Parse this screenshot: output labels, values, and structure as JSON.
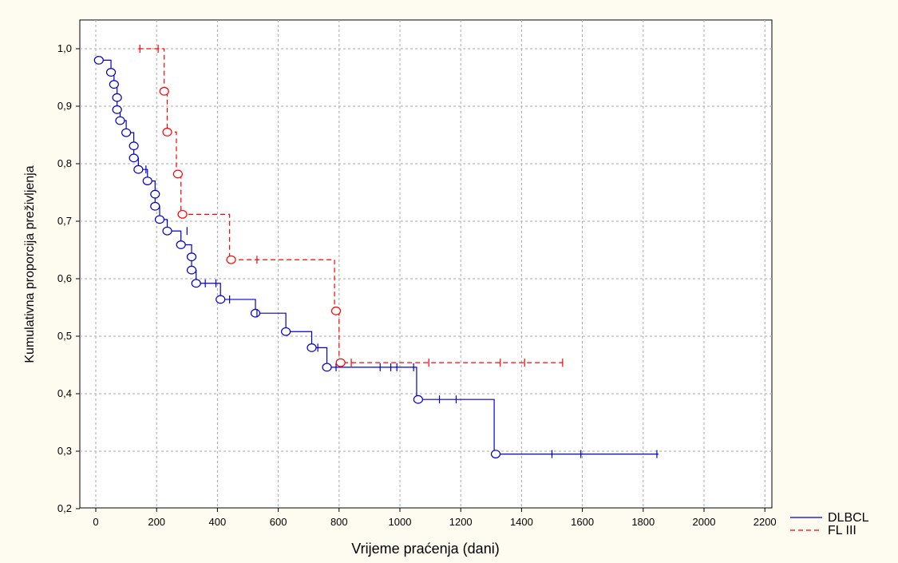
{
  "chart_data": {
    "type": "line",
    "title": "",
    "xlabel": "Vrijeme praćenja (dani)",
    "ylabel": "Kumulativna proporcija preživljenja",
    "xlim": [
      -50,
      2200
    ],
    "ylim": [
      0.2,
      1.05
    ],
    "xticks": [
      0,
      200,
      400,
      600,
      800,
      1000,
      1200,
      1400,
      1600,
      1800,
      2000,
      2200
    ],
    "yticks": [
      0.2,
      0.3,
      0.4,
      0.5,
      0.6,
      0.7,
      0.8,
      0.9,
      1.0
    ],
    "xtick_labels": [
      "0",
      "200",
      "400",
      "600",
      "800",
      "1000",
      "1200",
      "1400",
      "1600",
      "1800",
      "2000",
      "2200"
    ],
    "ytick_labels": [
      "0,2",
      "0,3",
      "0,4",
      "0,5",
      "0,6",
      "0,7",
      "0,8",
      "0,9",
      "1,0"
    ],
    "grid": true,
    "legend_position": "bottom-right-outside",
    "series": [
      {
        "name": "DLBCL",
        "color": "#0000cc",
        "dash": "solid",
        "steps": [
          [
            0,
            0.98
          ],
          [
            50,
            0.959
          ],
          [
            60,
            0.938
          ],
          [
            70,
            0.915
          ],
          [
            70,
            0.894
          ],
          [
            80,
            0.875
          ],
          [
            100,
            0.854
          ],
          [
            125,
            0.831
          ],
          [
            125,
            0.81
          ],
          [
            140,
            0.79
          ],
          [
            170,
            0.77
          ],
          [
            195,
            0.747
          ],
          [
            195,
            0.726
          ],
          [
            210,
            0.703
          ],
          [
            235,
            0.683
          ],
          [
            280,
            0.659
          ],
          [
            315,
            0.638
          ],
          [
            315,
            0.615
          ],
          [
            330,
            0.592
          ],
          [
            410,
            0.564
          ],
          [
            525,
            0.54
          ],
          [
            625,
            0.508
          ],
          [
            710,
            0.48
          ],
          [
            760,
            0.446
          ],
          [
            1055,
            0.39
          ],
          [
            1310,
            0.295
          ],
          [
            1850,
            0.295
          ]
        ],
        "events": [
          [
            10,
            0.98
          ],
          [
            50,
            0.959
          ],
          [
            60,
            0.938
          ],
          [
            70,
            0.915
          ],
          [
            70,
            0.894
          ],
          [
            80,
            0.875
          ],
          [
            100,
            0.854
          ],
          [
            125,
            0.831
          ],
          [
            125,
            0.81
          ],
          [
            140,
            0.79
          ],
          [
            170,
            0.77
          ],
          [
            195,
            0.747
          ],
          [
            195,
            0.726
          ],
          [
            210,
            0.703
          ],
          [
            235,
            0.683
          ],
          [
            280,
            0.659
          ],
          [
            315,
            0.638
          ],
          [
            315,
            0.615
          ],
          [
            330,
            0.592
          ],
          [
            410,
            0.564
          ],
          [
            525,
            0.54
          ],
          [
            625,
            0.508
          ],
          [
            710,
            0.48
          ],
          [
            760,
            0.446
          ],
          [
            1060,
            0.39
          ],
          [
            1315,
            0.295
          ]
        ],
        "censored": [
          [
            165,
            0.79
          ],
          [
            300,
            0.683
          ],
          [
            360,
            0.592
          ],
          [
            395,
            0.592
          ],
          [
            440,
            0.564
          ],
          [
            530,
            0.54
          ],
          [
            730,
            0.48
          ],
          [
            790,
            0.446
          ],
          [
            935,
            0.446
          ],
          [
            970,
            0.446
          ],
          [
            990,
            0.446
          ],
          [
            1045,
            0.446
          ],
          [
            1130,
            0.39
          ],
          [
            1185,
            0.39
          ],
          [
            1500,
            0.295
          ],
          [
            1595,
            0.295
          ],
          [
            1845,
            0.295
          ]
        ]
      },
      {
        "name": "FL III",
        "color": "#ff0000",
        "dash": "dashed",
        "steps": [
          [
            140,
            1.0
          ],
          [
            225,
            0.926
          ],
          [
            235,
            0.855
          ],
          [
            265,
            0.782
          ],
          [
            280,
            0.712
          ],
          [
            440,
            0.633
          ],
          [
            785,
            0.544
          ],
          [
            800,
            0.454
          ],
          [
            1535,
            0.454
          ]
        ],
        "events": [
          [
            225,
            0.926
          ],
          [
            235,
            0.855
          ],
          [
            270,
            0.782
          ],
          [
            285,
            0.712
          ],
          [
            445,
            0.633
          ],
          [
            790,
            0.544
          ],
          [
            805,
            0.454
          ]
        ],
        "censored": [
          [
            145,
            1.0
          ],
          [
            205,
            1.0
          ],
          [
            530,
            0.633
          ],
          [
            840,
            0.454
          ],
          [
            1095,
            0.454
          ],
          [
            1330,
            0.454
          ],
          [
            1410,
            0.454
          ],
          [
            1535,
            0.454
          ]
        ]
      }
    ]
  }
}
